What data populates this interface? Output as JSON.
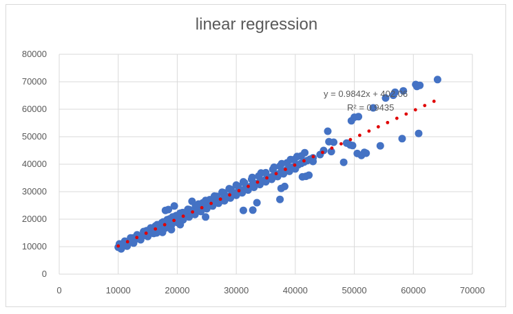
{
  "chart_data": {
    "type": "scatter",
    "title": "linear regression",
    "xlabel": "",
    "ylabel": "",
    "xlim": [
      0,
      70000
    ],
    "ylim": [
      0,
      80000
    ],
    "x_ticks": [
      "0",
      "10000",
      "20000",
      "30000",
      "40000",
      "50000",
      "60000",
      "70000"
    ],
    "y_ticks": [
      "0",
      "10000",
      "20000",
      "30000",
      "40000",
      "50000",
      "60000",
      "70000",
      "80000"
    ],
    "grid": true,
    "legend": "none",
    "point_color": "#4472C4",
    "trend_color": "#E00000",
    "trendline": {
      "slope": 0.9842,
      "intercept": 402.06,
      "x_range": [
        10000,
        63500
      ],
      "equation_label": "y = 0.9842x + 402.06",
      "r2_label": "R² = 0.9435"
    },
    "series": [
      {
        "x": [
          10000,
          10300,
          10600,
          11000,
          11300,
          11700,
          12000,
          12300,
          12700,
          13000,
          13400,
          13700,
          14000,
          14400,
          14700,
          15000,
          15400,
          15800,
          16100,
          16500,
          16800,
          17200,
          17500,
          17900,
          18200,
          18600,
          19000,
          19300,
          19700,
          20000,
          20400,
          20800,
          21100,
          21500,
          21900,
          22200,
          22600,
          23000,
          23400,
          23800,
          24200,
          24600,
          25000,
          25400,
          25800,
          26200,
          26600,
          27000,
          27400,
          27800,
          28200,
          28600,
          29000,
          29400,
          29800,
          30200,
          30600,
          31000,
          31500,
          32000,
          32500,
          33000,
          33500,
          34000,
          34500,
          35000,
          35500,
          36000,
          36500,
          37000,
          37500,
          38000,
          38500,
          39000,
          39500,
          40000,
          40500,
          41000,
          41500,
          42000,
          42500,
          43000,
          10200,
          11100,
          12100,
          13200,
          14300,
          15500,
          16600,
          17600,
          18700,
          19800,
          20900,
          22000,
          23100,
          24300,
          25500,
          26700,
          27900,
          29100,
          30300,
          31400,
          32600,
          33800,
          35000,
          36200,
          37400,
          38600,
          39800,
          41000,
          10500,
          11500,
          12600,
          13800,
          15000,
          16000,
          17000,
          18000,
          19000,
          20000,
          21000,
          22000,
          23000,
          24000,
          25000,
          26000,
          27000,
          28000,
          29000,
          30000,
          31000,
          32000,
          33000,
          34000,
          35000,
          36000,
          37000,
          38000,
          39000,
          40000,
          12500,
          14800,
          16300,
          17400,
          18300,
          19200,
          20500,
          21800,
          23600,
          24800,
          26300,
          27600,
          28800,
          30000,
          31200,
          32700,
          34200,
          36400,
          37700,
          39200,
          40300,
          41600,
          18000,
          18500,
          19500,
          21000,
          17500,
          16500,
          19000,
          20500,
          24800,
          22500,
          31200,
          32800,
          33500,
          37400,
          37600,
          38200,
          41200,
          41800,
          42300,
          43000,
          44200,
          44800,
          45500,
          45700,
          46100,
          46500,
          48200,
          48700,
          49300,
          49700,
          49500,
          50000,
          50500,
          50700,
          51200,
          51700,
          52000,
          53200,
          54400,
          55300,
          56600,
          56900,
          58100,
          58300,
          60400,
          60600,
          60900,
          61100,
          64100
        ],
        "y": [
          9800,
          10200,
          10500,
          11000,
          11200,
          11500,
          12000,
          12100,
          12600,
          12800,
          13200,
          13500,
          13800,
          14100,
          14600,
          14800,
          15200,
          15500,
          15900,
          16300,
          16500,
          17000,
          17200,
          17600,
          18000,
          18300,
          18700,
          19000,
          19400,
          19700,
          20100,
          20500,
          20800,
          21200,
          21600,
          21900,
          22300,
          22700,
          23100,
          23500,
          23800,
          24200,
          24600,
          25000,
          25400,
          25800,
          26200,
          26600,
          27000,
          27400,
          27800,
          28200,
          28500,
          28900,
          29300,
          29800,
          30200,
          30500,
          31000,
          31500,
          32000,
          32500,
          33000,
          33500,
          34000,
          34500,
          35000,
          35400,
          35900,
          36400,
          36900,
          37400,
          37900,
          38400,
          38900,
          39400,
          39800,
          40300,
          40800,
          41300,
          41800,
          42300,
          11000,
          12000,
          13200,
          14300,
          15500,
          16800,
          18000,
          19000,
          20100,
          21300,
          22400,
          23500,
          24700,
          25900,
          27100,
          28300,
          29600,
          30800,
          32000,
          33200,
          34500,
          35700,
          36900,
          38100,
          39300,
          40500,
          41700,
          43000,
          9200,
          10200,
          11300,
          12500,
          13700,
          14800,
          15700,
          16800,
          17800,
          18800,
          19800,
          20800,
          21700,
          22800,
          23800,
          24800,
          25800,
          26700,
          27700,
          28700,
          29600,
          30600,
          31600,
          32600,
          33600,
          34500,
          35500,
          36500,
          37400,
          38300,
          13200,
          15800,
          17500,
          18700,
          19800,
          20800,
          22200,
          23600,
          25500,
          26800,
          28400,
          29800,
          31100,
          32400,
          33600,
          35200,
          36800,
          38900,
          40200,
          41700,
          42800,
          44200,
          23200,
          23500,
          24800,
          20500,
          15200,
          15000,
          16200,
          18000,
          20800,
          26500,
          23200,
          23300,
          26000,
          27200,
          31200,
          31900,
          35400,
          35600,
          36000,
          41000,
          43500,
          45000,
          52000,
          48200,
          44600,
          48000,
          40700,
          47700,
          47000,
          46800,
          55800,
          57100,
          43900,
          57300,
          43200,
          44300,
          44000,
          60500,
          46700,
          64100,
          65100,
          66200,
          49300,
          66700,
          69000,
          68300,
          51200,
          68700,
          70800
        ]
      }
    ]
  }
}
